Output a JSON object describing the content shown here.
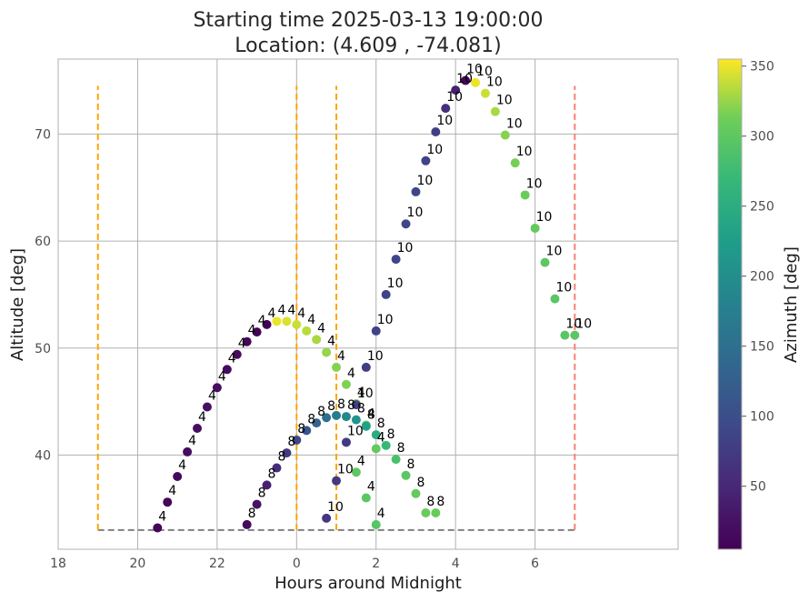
{
  "chart_data": {
    "type": "scatter",
    "title": "Starting time 2025-03-13 19:00:00",
    "subtitle": "Location: (4.609 , -74.081)",
    "xlabel": "Hours around Midnight",
    "ylabel": "Altitude [deg]",
    "colorbar_label": "Azimuth [deg]",
    "colormap": "viridis",
    "color_range": [
      5,
      355
    ],
    "x_tick_labels": [
      "18",
      "20",
      "22",
      "0",
      "2",
      "4",
      "6"
    ],
    "x_tick_values": [
      18,
      20,
      22,
      24,
      26,
      28,
      30
    ],
    "y_tick_values": [
      40,
      50,
      60,
      70
    ],
    "colorbar_ticks": [
      50,
      100,
      150,
      200,
      250,
      300,
      350
    ],
    "xlim": [
      18,
      33.6
    ],
    "ylim": [
      31.2,
      77.0
    ],
    "grid": true,
    "horizon_line": {
      "y": 33.0,
      "x": [
        19.0,
        31.0
      ],
      "color": "#808080",
      "style": "dashed"
    },
    "vertical_lines": [
      {
        "x": 19.0,
        "color": "#ffa500",
        "style": "dashed"
      },
      {
        "x": 24.0,
        "color": "#ffa500",
        "style": "dashed"
      },
      {
        "x": 25.0,
        "color": "#ffa500",
        "style": "dashed"
      },
      {
        "x": 31.0,
        "color": "#fa8072",
        "style": "dashed"
      }
    ],
    "vline_ymax": 74.5,
    "series": [
      {
        "label": "4",
        "x": [
          20.5,
          20.75,
          21.0,
          21.25,
          21.5,
          21.75,
          22.0,
          22.25,
          22.5,
          22.75,
          23.0,
          23.25,
          23.5,
          23.75,
          24.0,
          24.25,
          24.5,
          24.75,
          25.0,
          25.25,
          25.5,
          25.75,
          26.0
        ],
        "y": [
          33.2,
          35.6,
          38.0,
          40.3,
          42.5,
          44.5,
          46.3,
          48.0,
          49.4,
          50.6,
          51.5,
          52.2,
          52.5,
          52.5,
          52.2,
          51.6,
          50.8,
          49.6,
          48.2,
          46.6,
          44.8,
          42.8,
          40.6
        ],
        "azimuth": [
          10,
          12,
          15,
          18,
          20,
          22,
          20,
          18,
          15,
          12,
          8,
          5,
          350,
          345,
          340,
          335,
          330,
          325,
          320,
          318,
          315,
          310,
          305
        ]
      },
      {
        "label": "4",
        "x": [
          25.5,
          25.75,
          26.0
        ],
        "y": [
          38.4,
          36.0,
          33.5
        ],
        "azimuth": [
          300,
          298,
          295
        ]
      },
      {
        "label": "8",
        "x": [
          22.75,
          23.0,
          23.25,
          23.5,
          23.75,
          24.0,
          24.25,
          24.5,
          24.75,
          25.0,
          25.25,
          25.5,
          25.75,
          26.0,
          26.25,
          26.5,
          26.75,
          27.0,
          27.25,
          27.5
        ],
        "y": [
          33.5,
          35.4,
          37.2,
          38.8,
          40.2,
          41.4,
          42.3,
          43.0,
          43.5,
          43.7,
          43.6,
          43.3,
          42.7,
          41.9,
          40.9,
          39.6,
          38.1,
          36.4,
          34.6,
          34.6
        ],
        "azimuth": [
          15,
          25,
          40,
          55,
          70,
          90,
          110,
          130,
          150,
          170,
          190,
          210,
          230,
          250,
          270,
          285,
          298,
          305,
          308,
          308
        ]
      },
      {
        "label": "10",
        "x": [
          24.75,
          25.0,
          25.25,
          25.5,
          25.75,
          26.0,
          26.25,
          26.5,
          26.75,
          27.0,
          27.25,
          27.5,
          27.75,
          28.0,
          28.25,
          28.5,
          28.75,
          29.0,
          29.25,
          29.5,
          29.75,
          30.0,
          30.25,
          30.5,
          30.75,
          31.0
        ],
        "y": [
          34.1,
          37.6,
          41.2,
          44.7,
          48.2,
          51.6,
          55.0,
          58.3,
          61.6,
          64.6,
          67.5,
          70.2,
          72.4,
          74.1,
          75.0,
          74.8,
          73.8,
          72.1,
          69.9,
          67.3,
          64.3,
          61.2,
          58.0,
          54.6,
          51.2,
          51.2
        ],
        "azimuth": [
          70,
          72,
          75,
          78,
          80,
          82,
          85,
          88,
          90,
          88,
          85,
          80,
          60,
          40,
          10,
          350,
          340,
          330,
          320,
          315,
          310,
          305,
          300,
          298,
          296,
          296
        ]
      }
    ]
  }
}
